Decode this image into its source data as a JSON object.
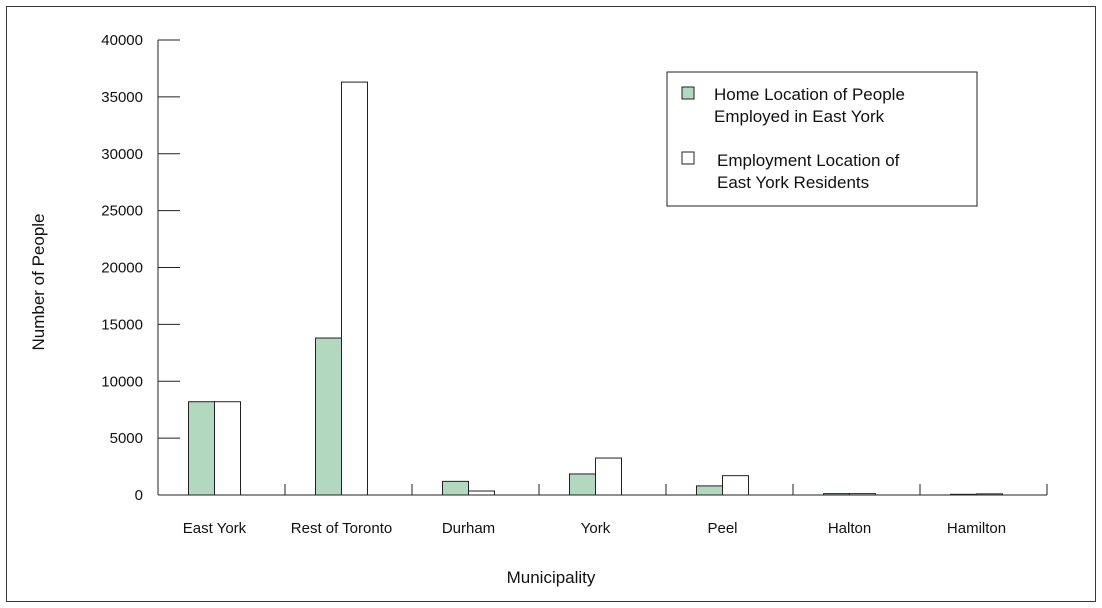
{
  "chart_data": {
    "type": "bar",
    "xlabel": "Municipality",
    "ylabel": "Number of People",
    "ylim": [
      0,
      40000
    ],
    "yticks": [
      0,
      5000,
      10000,
      15000,
      20000,
      25000,
      30000,
      35000,
      40000
    ],
    "categories": [
      "East York",
      "Rest of Toronto",
      "Durham",
      "York",
      "Peel",
      "Halton",
      "Hamilton"
    ],
    "series": [
      {
        "name": "Home Location of People Employed in East York",
        "legend_lines": [
          "Home Location of People",
          "Employed in East York"
        ],
        "color": "#b3d8c0",
        "values": [
          8200,
          13800,
          1200,
          1850,
          800,
          120,
          60
        ]
      },
      {
        "name": "Employment Location of East York Residents",
        "legend_lines": [
          "Employment Location of",
          "East York Residents"
        ],
        "color": "#ffffff",
        "values": [
          8200,
          36300,
          350,
          3250,
          1700,
          120,
          100
        ]
      }
    ],
    "legend_position": "top-right",
    "grid": false
  }
}
